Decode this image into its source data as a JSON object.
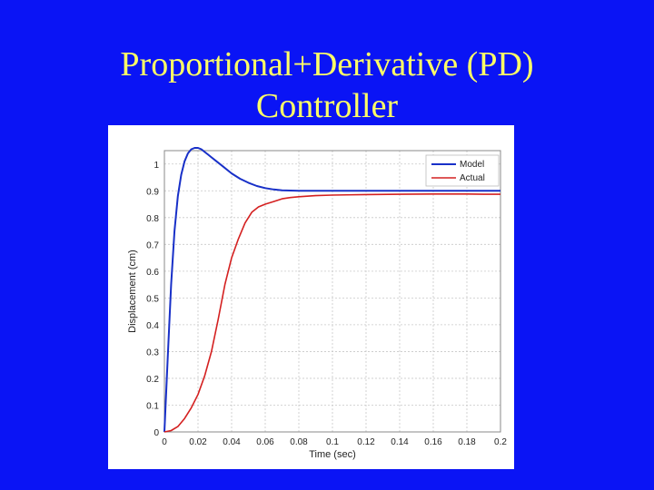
{
  "slide": {
    "title_line1": "Proportional+Derivative (PD)",
    "title_line2": "Controller"
  },
  "colors": {
    "background": "#0a14f5",
    "title": "#ffff66",
    "model": "#1830c8",
    "actual": "#d42020"
  },
  "chart_data": {
    "type": "line",
    "xlabel": "Time (sec)",
    "ylabel": "Displacement (cm)",
    "xlim": [
      0,
      0.2
    ],
    "ylim": [
      0,
      1.05
    ],
    "grid": true,
    "legend_position": "top-right",
    "x_ticks": [
      "0",
      "0.02",
      "0.04",
      "0.06",
      "0.08",
      "0.1",
      "0.12",
      "0.14",
      "0.16",
      "0.18",
      "0.2"
    ],
    "y_ticks": [
      "0",
      "0.1",
      "0.2",
      "0.3",
      "0.4",
      "0.5",
      "0.6",
      "0.7",
      "0.8",
      "0.9",
      "1"
    ],
    "series": [
      {
        "name": "Model",
        "color": "#1830c8",
        "x": [
          0,
          0.002,
          0.004,
          0.006,
          0.008,
          0.01,
          0.012,
          0.014,
          0.016,
          0.018,
          0.02,
          0.022,
          0.024,
          0.026,
          0.028,
          0.03,
          0.035,
          0.04,
          0.045,
          0.05,
          0.055,
          0.06,
          0.065,
          0.07,
          0.08,
          0.09,
          0.1,
          0.12,
          0.14,
          0.16,
          0.18,
          0.2
        ],
        "y": [
          0,
          0.28,
          0.55,
          0.75,
          0.88,
          0.96,
          1.01,
          1.04,
          1.055,
          1.06,
          1.06,
          1.055,
          1.045,
          1.035,
          1.025,
          1.015,
          0.99,
          0.965,
          0.945,
          0.93,
          0.918,
          0.91,
          0.905,
          0.902,
          0.9,
          0.9,
          0.9,
          0.9,
          0.9,
          0.9,
          0.9,
          0.9
        ]
      },
      {
        "name": "Actual",
        "color": "#d42020",
        "x": [
          0,
          0.004,
          0.008,
          0.012,
          0.016,
          0.02,
          0.024,
          0.028,
          0.032,
          0.036,
          0.04,
          0.044,
          0.048,
          0.052,
          0.056,
          0.06,
          0.065,
          0.07,
          0.075,
          0.08,
          0.085,
          0.09,
          0.1,
          0.12,
          0.14,
          0.16,
          0.18,
          0.19,
          0.2
        ],
        "y": [
          0,
          0.005,
          0.02,
          0.05,
          0.09,
          0.14,
          0.21,
          0.3,
          0.42,
          0.55,
          0.65,
          0.72,
          0.78,
          0.82,
          0.84,
          0.85,
          0.86,
          0.87,
          0.875,
          0.878,
          0.88,
          0.882,
          0.884,
          0.886,
          0.887,
          0.888,
          0.888,
          0.887,
          0.887
        ]
      }
    ]
  }
}
